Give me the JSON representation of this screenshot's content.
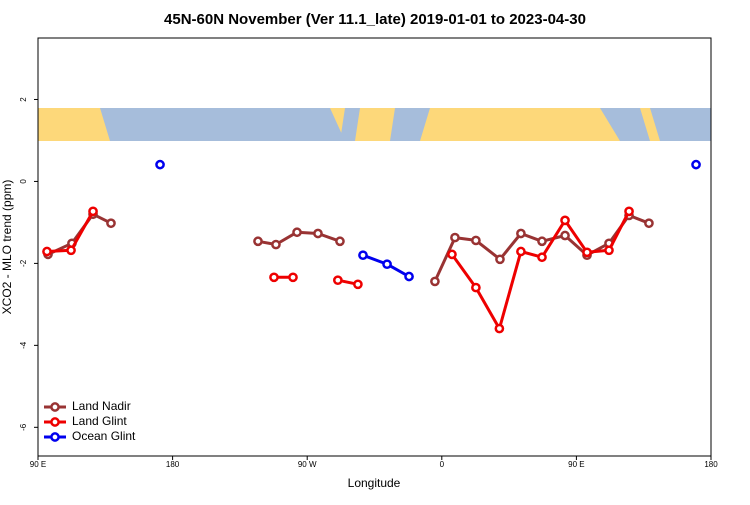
{
  "chart_data": {
    "type": "line",
    "title": "45N-60N November (Ver 11.1_late)   2019-01-01 to 2023-04-30",
    "x_label": "Longitude",
    "y_label": "XCO2 - MLO trend (ppm)",
    "xlim": [
      90,
      540
    ],
    "ylim": [
      -6.7,
      3.5
    ],
    "xticks": [
      {
        "value": 90,
        "label": "90 E"
      },
      {
        "value": 180,
        "label": "180"
      },
      {
        "value": 270,
        "label": "90 W"
      },
      {
        "value": 360,
        "label": "0"
      },
      {
        "value": 450,
        "label": "90 E"
      },
      {
        "value": 540,
        "label": "180"
      }
    ],
    "yticks": [
      2,
      0,
      -2,
      -4,
      -6
    ],
    "legend": "bottom-left",
    "series": [
      {
        "name": "Land Nadir",
        "color": "#993333",
        "x": [
          96.7,
          112.7,
          126.8,
          138.8,
          null,
          237.1,
          249.1,
          263.2,
          277.2,
          291.9,
          null,
          355.4,
          368.8,
          382.8,
          398.9,
          412.9,
          427.0,
          442.4,
          457.1,
          471.8,
          485.2,
          498.5
        ],
        "values": [
          -1.78,
          -1.51,
          -0.8,
          -1.02,
          null,
          -1.46,
          -1.54,
          -1.24,
          -1.27,
          -1.46,
          null,
          -2.44,
          -1.37,
          -1.44,
          -1.9,
          -1.27,
          -1.46,
          -1.32,
          -1.8,
          -1.51,
          -0.83,
          -1.02
        ]
      },
      {
        "name": "Land Glint",
        "color": "#ee0000",
        "x": [
          96.0,
          112.1,
          126.8,
          null,
          247.8,
          260.5,
          null,
          290.5,
          303.9,
          null,
          366.8,
          382.8,
          398.5,
          412.9,
          427.0,
          442.4,
          457.1,
          471.8,
          485.2
        ],
        "values": [
          -1.71,
          -1.68,
          -0.73,
          null,
          -2.34,
          -2.34,
          null,
          -2.41,
          -2.51,
          null,
          -1.78,
          -2.59,
          -3.59,
          -1.71,
          -1.85,
          -0.95,
          -1.73,
          -1.68,
          -0.73
        ]
      },
      {
        "name": "Ocean Glint",
        "color": "#0000ee",
        "x": [
          171.6,
          null,
          307.3,
          323.4,
          338.1,
          null,
          530.0
        ],
        "values": [
          0.41,
          null,
          -1.8,
          -2.02,
          -2.32,
          null,
          0.41
        ]
      }
    ]
  }
}
